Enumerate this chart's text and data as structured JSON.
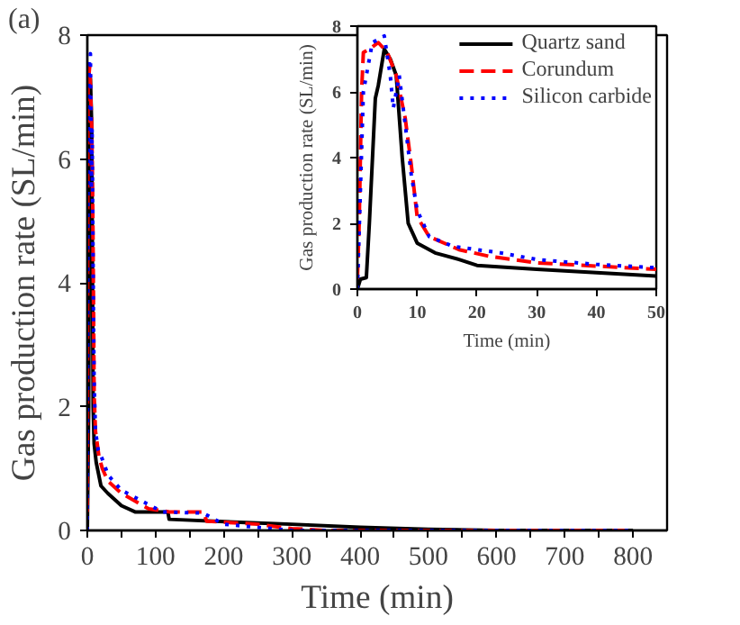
{
  "chart_data": [
    {
      "type": "line",
      "xlabel": "Time (min)",
      "ylabel": "Gas production rate (SL/min)",
      "annotations": [
        "(a)"
      ],
      "xlim": [
        0,
        850
      ],
      "ylim": [
        0,
        8
      ],
      "xticks": [
        0,
        {
          "value": 50,
          "label": null
        },
        100,
        {
          "value": 150,
          "label": null
        },
        200,
        {
          "value": 250,
          "label": null
        },
        300,
        {
          "value": 350,
          "label": null
        },
        400,
        {
          "value": 450,
          "label": null
        },
        500,
        {
          "value": 550,
          "label": null
        },
        600,
        {
          "value": 650,
          "label": null
        },
        700,
        {
          "value": 750,
          "label": null
        },
        800
      ],
      "yticks": [
        0,
        2,
        4,
        6,
        8
      ],
      "grid": false,
      "legend": false,
      "marker": "none",
      "series": [
        {
          "color": "#000000",
          "line_style": "solid",
          "x": [
            0,
            2,
            3,
            4.5,
            6.5,
            8.5,
            10,
            13,
            20,
            30,
            50,
            70,
            118,
            120,
            250,
            300,
            400,
            500,
            600,
            800
          ],
          "values": [
            0,
            2,
            5.8,
            7.3,
            6.5,
            2,
            1.4,
            1.1,
            0.72,
            0.6,
            0.4,
            0.3,
            0.3,
            0.18,
            0.12,
            0.1,
            0.05,
            0.02,
            0,
            0
          ]
        },
        {
          "color": "#ff0000",
          "line_style": "dashed",
          "x": [
            0,
            0.3,
            0.7,
            1,
            3.5,
            6.5,
            8,
            9,
            10,
            12,
            17,
            22,
            30,
            50,
            90,
            120,
            170,
            175,
            250,
            300,
            350,
            800
          ],
          "values": [
            0.3,
            2,
            6,
            7.2,
            7.5,
            6.5,
            5.2,
            3.8,
            2.2,
            1.6,
            1.2,
            1.0,
            0.8,
            0.6,
            0.35,
            0.3,
            0.3,
            0.15,
            0.1,
            0.03,
            0,
            0
          ]
        },
        {
          "color": "#0000ff",
          "line_style": "dotted",
          "x": [
            0,
            0.5,
            1,
            2.5,
            4.5,
            5.5,
            6,
            7,
            8,
            9,
            10,
            12,
            16,
            24,
            30,
            50,
            110,
            170,
            200,
            280,
            300,
            800
          ],
          "values": [
            0,
            3,
            6,
            7.5,
            7.7,
            6.5,
            5.5,
            6.5,
            5,
            3.5,
            2.4,
            1.6,
            1.3,
            1.1,
            0.9,
            0.65,
            0.3,
            0.28,
            0.1,
            0.02,
            0,
            0
          ]
        }
      ]
    },
    {
      "type": "line",
      "xlabel": "Time (min)",
      "ylabel": "Gas production rate (SL/min)",
      "xlim": [
        0,
        50
      ],
      "ylim": [
        0,
        8
      ],
      "xticks": [
        0,
        10,
        20,
        30,
        40,
        50
      ],
      "yticks": [
        0,
        2,
        4,
        6,
        8
      ],
      "grid": false,
      "legend": "top right",
      "marker": "none",
      "series": [
        {
          "name": "Quartz sand",
          "color": "#000000",
          "line_style": "solid",
          "x": [
            0,
            0.5,
            1.5,
            2,
            3,
            3.5,
            4.5,
            5.5,
            6.5,
            7.5,
            8.5,
            10,
            13,
            17,
            20,
            30,
            40,
            50
          ],
          "values": [
            0,
            0.3,
            0.35,
            2,
            5.8,
            6.2,
            7.3,
            7.0,
            6.5,
            4,
            2,
            1.4,
            1.1,
            0.9,
            0.72,
            0.6,
            0.5,
            0.4
          ]
        },
        {
          "name": "Corundum",
          "color": "#ff0000",
          "line_style": "dashed",
          "x": [
            0,
            0.3,
            0.7,
            1,
            2,
            3.5,
            5,
            6.5,
            8,
            9,
            10,
            12,
            17,
            22,
            30,
            40,
            50
          ],
          "values": [
            0.3,
            2,
            6,
            7.2,
            7.3,
            7.5,
            7.2,
            6.5,
            5.2,
            3.8,
            2.2,
            1.6,
            1.2,
            1.0,
            0.8,
            0.7,
            0.6
          ]
        },
        {
          "name": "Silicon carbide",
          "color": "#0000ff",
          "line_style": "dotted",
          "x": [
            0,
            0.5,
            1,
            2.5,
            4.5,
            5.5,
            6,
            7,
            8,
            9,
            10,
            12,
            16,
            24,
            30,
            40,
            50
          ],
          "values": [
            0,
            3,
            6,
            7.5,
            7.7,
            6.5,
            5.5,
            6.5,
            5,
            3.5,
            2.4,
            1.6,
            1.3,
            1.1,
            0.9,
            0.75,
            0.65
          ]
        }
      ]
    }
  ]
}
